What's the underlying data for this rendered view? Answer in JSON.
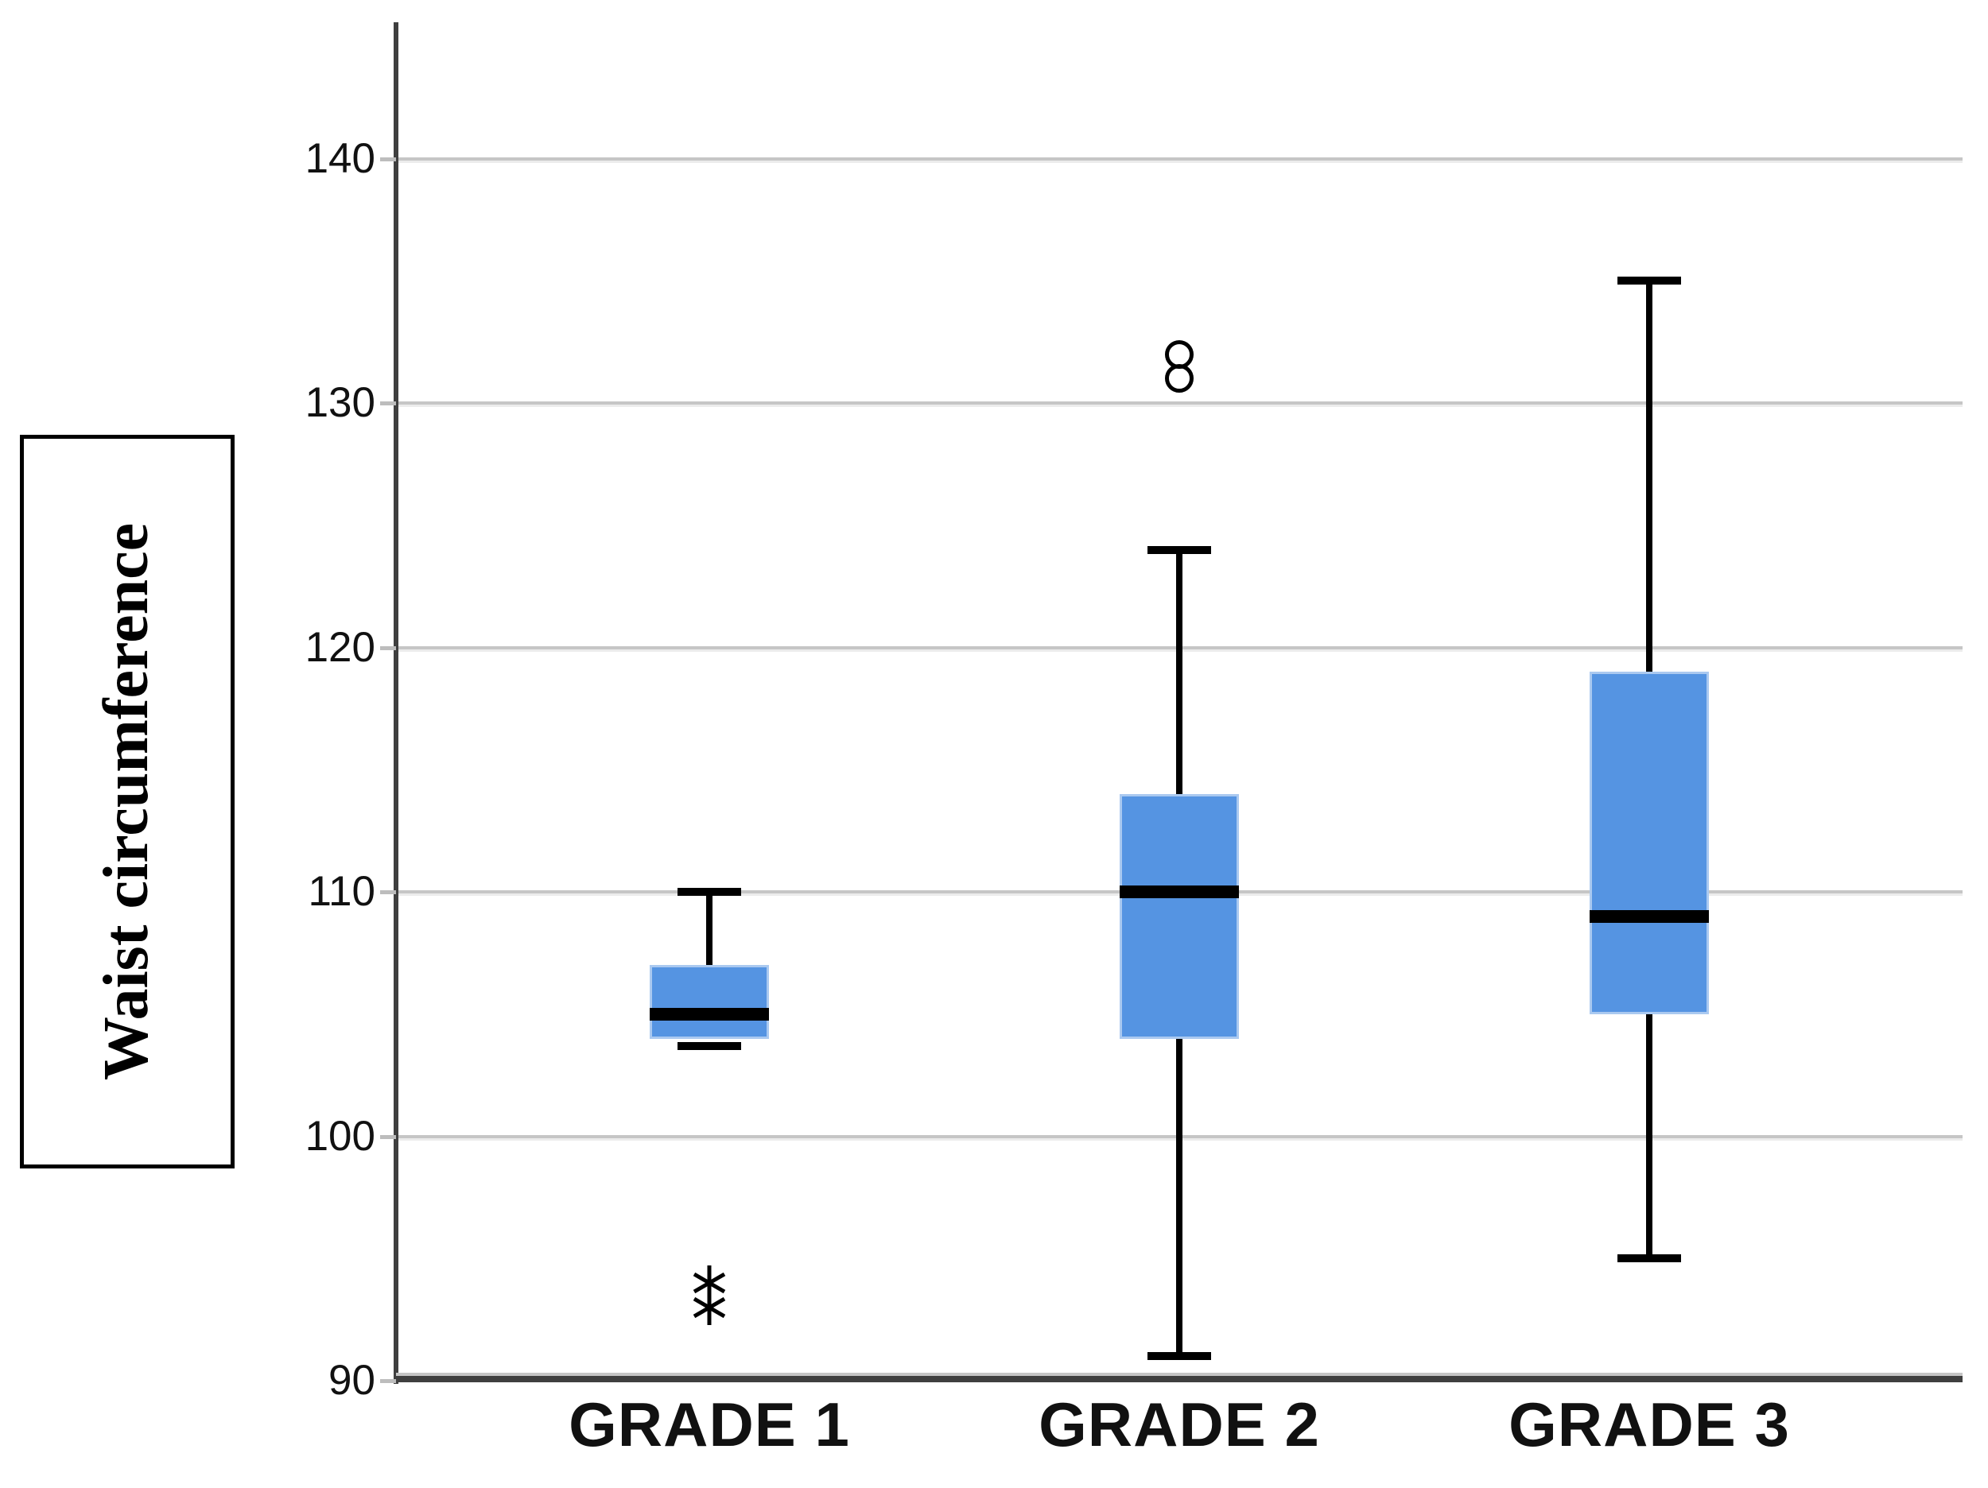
{
  "figure": {
    "background": "#ffffff"
  },
  "chart_data": {
    "type": "boxplot",
    "title": "",
    "ylabel": "Waist circumference",
    "xlabel": "",
    "categories": [
      "GRADE 1",
      "GRADE 2",
      "GRADE 3"
    ],
    "y_ticks": [
      90,
      100,
      110,
      120,
      130,
      140
    ],
    "ylim": [
      90,
      145.5
    ],
    "grid": "horizontal",
    "legend": "none",
    "series": [
      {
        "name": "GRADE 1",
        "whisker_low": 104,
        "q1": 104,
        "median": 105,
        "q3": 107,
        "whisker_high": 110,
        "outliers_extreme": [
          94,
          93
        ],
        "outliers_mild": []
      },
      {
        "name": "GRADE 2",
        "whisker_low": 91,
        "q1": 104,
        "median": 110,
        "q3": 114,
        "whisker_high": 124,
        "outliers_extreme": [],
        "outliers_mild": [
          132,
          131
        ]
      },
      {
        "name": "GRADE 3",
        "whisker_low": 95,
        "q1": 105,
        "median": 109,
        "q3": 119,
        "whisker_high": 135,
        "outliers_extreme": [],
        "outliers_mild": []
      }
    ],
    "colors": {
      "box_fill": "#5594e2",
      "box_border": "#aac9f0",
      "median": "#000000",
      "whisker": "#000000",
      "gridline": "#c6c6c6",
      "axis": "#3f3f3f",
      "text": "#111111"
    }
  }
}
